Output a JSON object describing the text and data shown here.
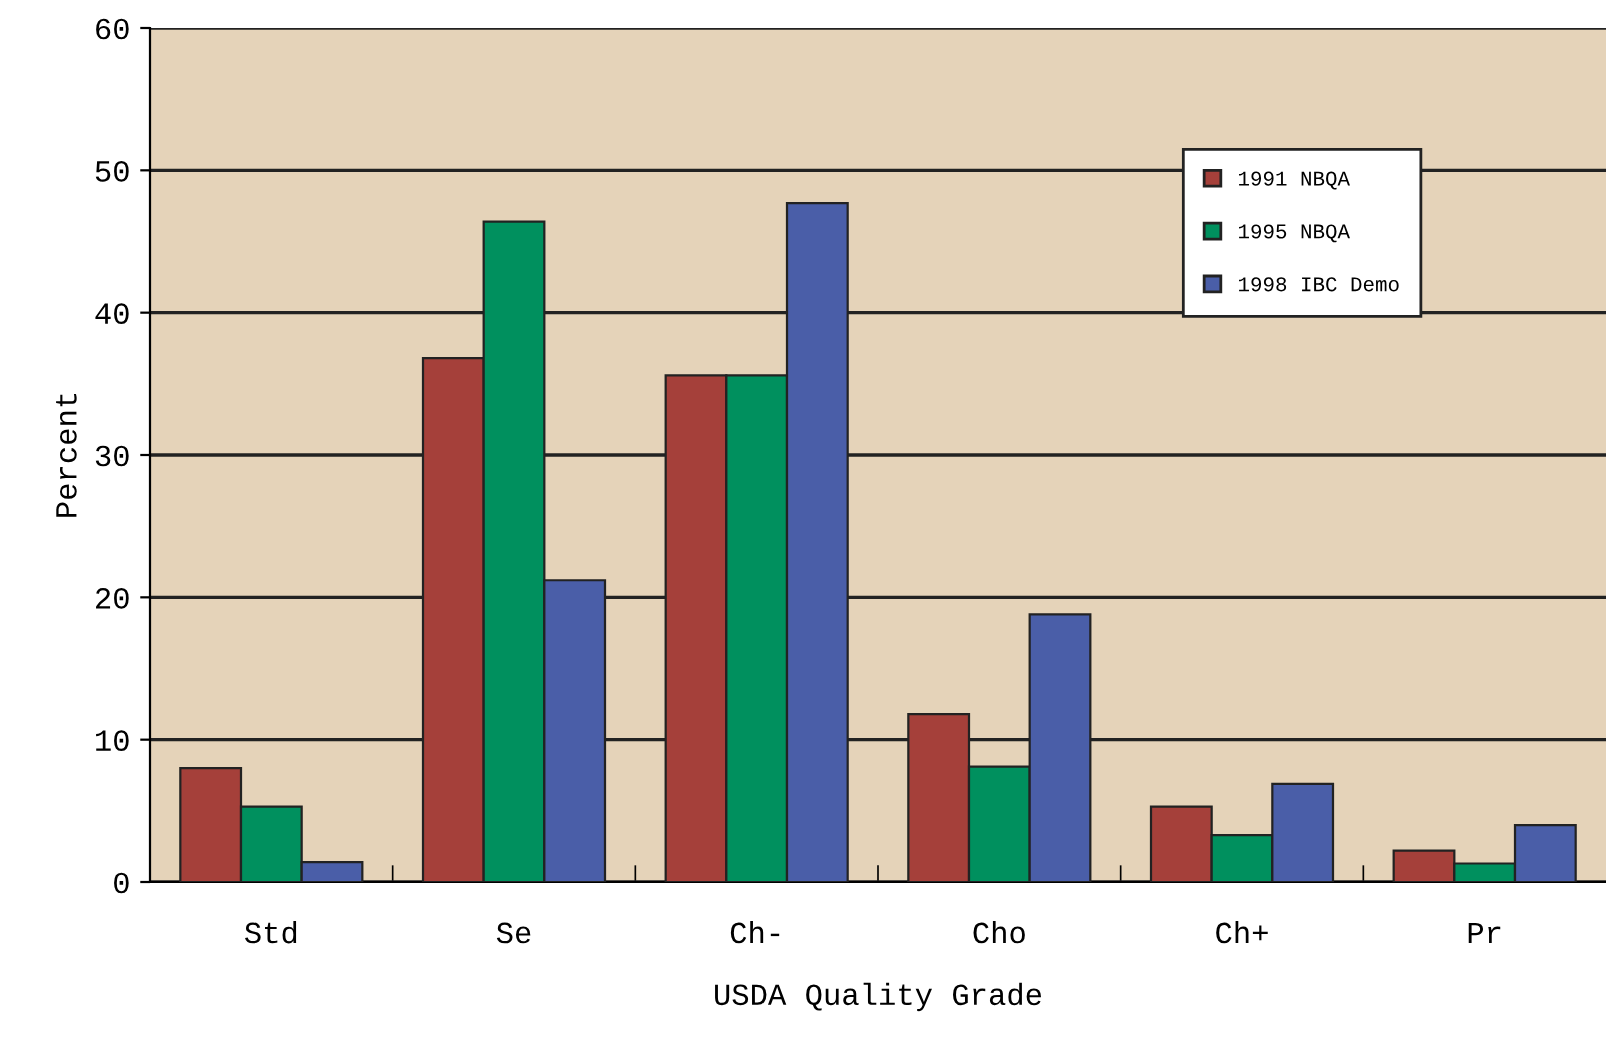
{
  "chart_data": {
    "type": "bar",
    "xlabel": "USDA Quality Grade",
    "ylabel": "Percent",
    "categories": [
      "Std",
      "Se",
      "Ch-",
      "Cho",
      "Ch+",
      "Pr"
    ],
    "series": [
      {
        "name": "1991 NBQA",
        "color": "#a5403a",
        "values": [
          8.0,
          36.8,
          35.6,
          11.8,
          5.3,
          2.2
        ]
      },
      {
        "name": "1995 NBQA",
        "color": "#00905e",
        "values": [
          5.3,
          46.4,
          35.6,
          8.1,
          3.3,
          1.3
        ]
      },
      {
        "name": "1998 IBC Demo",
        "color": "#4a5ea8",
        "values": [
          1.4,
          21.2,
          47.7,
          18.8,
          6.9,
          4.0
        ]
      }
    ],
    "ylim": [
      0,
      60
    ],
    "yticks": [
      0,
      10,
      20,
      30,
      40,
      50,
      60
    ],
    "grid": "y",
    "legend": "top right"
  }
}
